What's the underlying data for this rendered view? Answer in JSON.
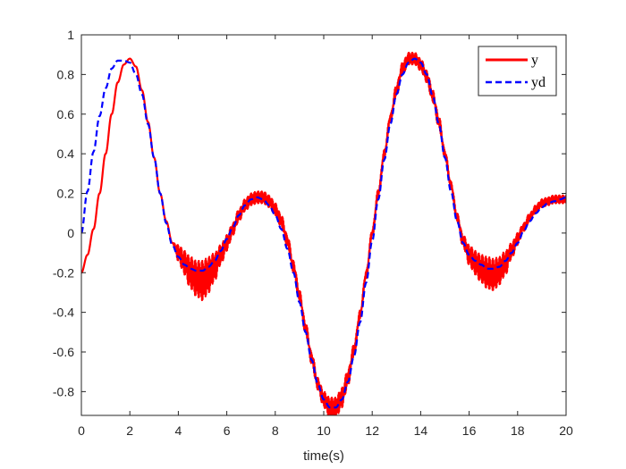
{
  "chart_data": {
    "type": "line",
    "title": "",
    "xlabel": "time(s)",
    "ylabel": "",
    "xlim": [
      0,
      20
    ],
    "ylim": [
      -0.92,
      1.0
    ],
    "xticks": [
      0,
      2,
      4,
      6,
      8,
      10,
      12,
      14,
      16,
      18,
      20
    ],
    "yticks": [
      -0.8,
      -0.6,
      -0.4,
      -0.2,
      0,
      0.2,
      0.4,
      0.6,
      0.8,
      1
    ],
    "ytick_labels": [
      "-0.8",
      "-0.6",
      "-0.4",
      "-0.2",
      "0",
      "0.2",
      "0.4",
      "0.6",
      "0.8",
      "1"
    ],
    "xtick_labels": [
      "0",
      "2",
      "4",
      "6",
      "8",
      "10",
      "12",
      "14",
      "16",
      "18",
      "20"
    ],
    "grid": false,
    "legend_position": "top-right",
    "series": [
      {
        "name": "y",
        "color": "#ff0000",
        "style": "solid",
        "x": [
          0,
          0.25,
          0.5,
          0.75,
          1.0,
          1.25,
          1.5,
          1.75,
          2.0,
          2.25,
          2.5,
          2.75,
          3.0,
          3.25,
          3.5,
          3.75,
          4.0,
          4.25,
          4.5,
          4.75,
          5.0,
          5.25,
          5.5,
          5.75,
          6.0,
          6.25,
          6.5,
          6.75,
          7.0,
          7.25,
          7.5,
          7.75,
          8.0,
          8.25,
          8.5,
          8.75,
          9.0,
          9.25,
          9.5,
          9.75,
          10.0,
          10.25,
          10.5,
          10.75,
          11.0,
          11.25,
          11.5,
          11.75,
          12.0,
          12.25,
          12.5,
          12.75,
          13.0,
          13.25,
          13.5,
          13.75,
          14.0,
          14.25,
          14.5,
          14.75,
          15.0,
          15.25,
          15.5,
          15.75,
          16.0,
          16.25,
          16.5,
          16.75,
          17.0,
          17.25,
          17.5,
          17.75,
          18.0,
          18.25,
          18.5,
          18.75,
          19.0,
          19.25,
          19.5,
          19.75,
          20.0
        ],
        "y": [
          -0.2,
          -0.11,
          0.02,
          0.2,
          0.4,
          0.6,
          0.76,
          0.85,
          0.88,
          0.84,
          0.72,
          0.56,
          0.38,
          0.2,
          0.06,
          -0.05,
          -0.1,
          -0.15,
          -0.2,
          -0.23,
          -0.24,
          -0.21,
          -0.17,
          -0.11,
          -0.05,
          0.02,
          0.09,
          0.14,
          0.17,
          0.18,
          0.18,
          0.16,
          0.12,
          0.06,
          -0.04,
          -0.17,
          -0.32,
          -0.48,
          -0.63,
          -0.76,
          -0.84,
          -0.88,
          -0.88,
          -0.83,
          -0.73,
          -0.59,
          -0.41,
          -0.21,
          0.0,
          0.2,
          0.4,
          0.58,
          0.72,
          0.83,
          0.88,
          0.88,
          0.85,
          0.79,
          0.69,
          0.56,
          0.4,
          0.24,
          0.08,
          -0.04,
          -0.11,
          -0.15,
          -0.18,
          -0.2,
          -0.21,
          -0.19,
          -0.15,
          -0.09,
          -0.03,
          0.03,
          0.08,
          0.12,
          0.15,
          0.16,
          0.17,
          0.17,
          0.17
        ],
        "oscillation_band_max": [
          0,
          0,
          0,
          0,
          0,
          0,
          0,
          0,
          0,
          0,
          0,
          0,
          0,
          0,
          0,
          0,
          0.04,
          0.06,
          0.08,
          0.09,
          0.1,
          0.09,
          0.07,
          0.05,
          0.04,
          0.03,
          0.03,
          0.03,
          0.03,
          0.03,
          0.03,
          0.03,
          0.03,
          0.03,
          0.03,
          0.03,
          0.03,
          0.03,
          0.03,
          0.03,
          0.04,
          0.05,
          0.05,
          0.05,
          0.04,
          0.03,
          0.02,
          0.02,
          0.02,
          0.02,
          0.02,
          0.02,
          0.03,
          0.03,
          0.03,
          0.03,
          0.03,
          0.03,
          0.03,
          0.03,
          0.02,
          0.02,
          0.02,
          0.03,
          0.05,
          0.06,
          0.07,
          0.08,
          0.08,
          0.07,
          0.06,
          0.04,
          0.03,
          0.02,
          0.02,
          0.02,
          0.02,
          0.02,
          0.02,
          0.02,
          0.02
        ]
      },
      {
        "name": "yd",
        "color": "#0000ff",
        "style": "dashed",
        "x": [
          0,
          0.25,
          0.5,
          0.75,
          1.0,
          1.25,
          1.5,
          1.75,
          2.0,
          2.25,
          2.5,
          2.75,
          3.0,
          3.25,
          3.5,
          3.75,
          4.0,
          4.25,
          4.5,
          4.75,
          5.0,
          5.25,
          5.5,
          5.75,
          6.0,
          6.25,
          6.5,
          6.75,
          7.0,
          7.25,
          7.5,
          7.75,
          8.0,
          8.25,
          8.5,
          8.75,
          9.0,
          9.25,
          9.5,
          9.75,
          10.0,
          10.25,
          10.5,
          10.75,
          11.0,
          11.25,
          11.5,
          11.75,
          12.0,
          12.25,
          12.5,
          12.75,
          13.0,
          13.25,
          13.5,
          13.75,
          14.0,
          14.25,
          14.5,
          14.75,
          15.0,
          15.25,
          15.5,
          15.75,
          16.0,
          16.25,
          16.5,
          16.75,
          17.0,
          17.25,
          17.5,
          17.75,
          18.0,
          18.25,
          18.5,
          18.75,
          19.0,
          19.25,
          19.5,
          19.75,
          20.0
        ],
        "y": [
          0.0,
          0.21,
          0.41,
          0.59,
          0.73,
          0.83,
          0.87,
          0.87,
          0.86,
          0.8,
          0.7,
          0.55,
          0.38,
          0.2,
          0.05,
          -0.06,
          -0.12,
          -0.16,
          -0.18,
          -0.19,
          -0.19,
          -0.17,
          -0.14,
          -0.09,
          -0.03,
          0.03,
          0.09,
          0.14,
          0.17,
          0.18,
          0.17,
          0.14,
          0.09,
          0.02,
          -0.08,
          -0.2,
          -0.35,
          -0.5,
          -0.64,
          -0.76,
          -0.84,
          -0.88,
          -0.88,
          -0.84,
          -0.75,
          -0.62,
          -0.45,
          -0.25,
          -0.04,
          0.17,
          0.37,
          0.55,
          0.7,
          0.8,
          0.86,
          0.88,
          0.86,
          0.8,
          0.69,
          0.55,
          0.38,
          0.21,
          0.06,
          -0.05,
          -0.11,
          -0.14,
          -0.16,
          -0.18,
          -0.18,
          -0.17,
          -0.14,
          -0.1,
          -0.05,
          0.01,
          0.06,
          0.1,
          0.13,
          0.15,
          0.16,
          0.17,
          0.18
        ]
      }
    ]
  }
}
